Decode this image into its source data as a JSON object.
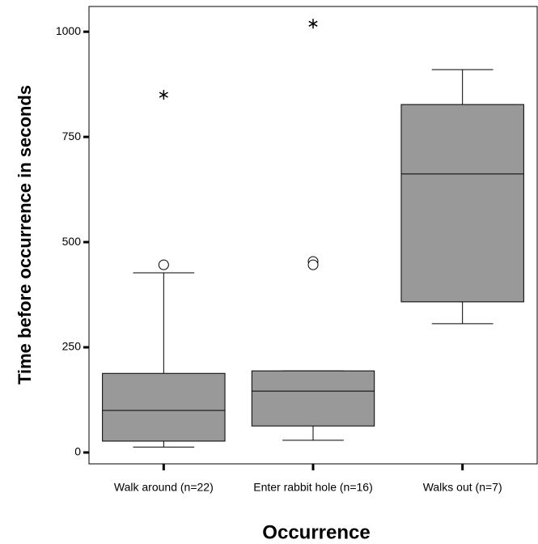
{
  "chart_data": {
    "type": "box",
    "xlabel": "Occurrence",
    "ylabel": "Time before occurrence in seconds",
    "categories": [
      "Walk around (n=22)",
      "Enter rabbit hole (n=16)",
      "Walks out (n=7)"
    ],
    "boxes": [
      {
        "min": 13,
        "q1": 27,
        "median": 100,
        "q3": 188,
        "max": 427,
        "outliers": [
          446
        ],
        "extremes": [
          850
        ]
      },
      {
        "min": 29,
        "q1": 63,
        "median": 146,
        "q3": 194,
        "max": 194,
        "outliers": [
          454,
          446
        ],
        "extremes": [
          1019
        ]
      },
      {
        "min": 306,
        "q1": 358,
        "median": 662,
        "q3": 827,
        "max": 910,
        "outliers": [],
        "extremes": []
      }
    ],
    "color": "#999999",
    "ylim": [
      -27,
      1060
    ],
    "yticks": [
      0,
      250,
      500,
      750,
      1000
    ]
  }
}
